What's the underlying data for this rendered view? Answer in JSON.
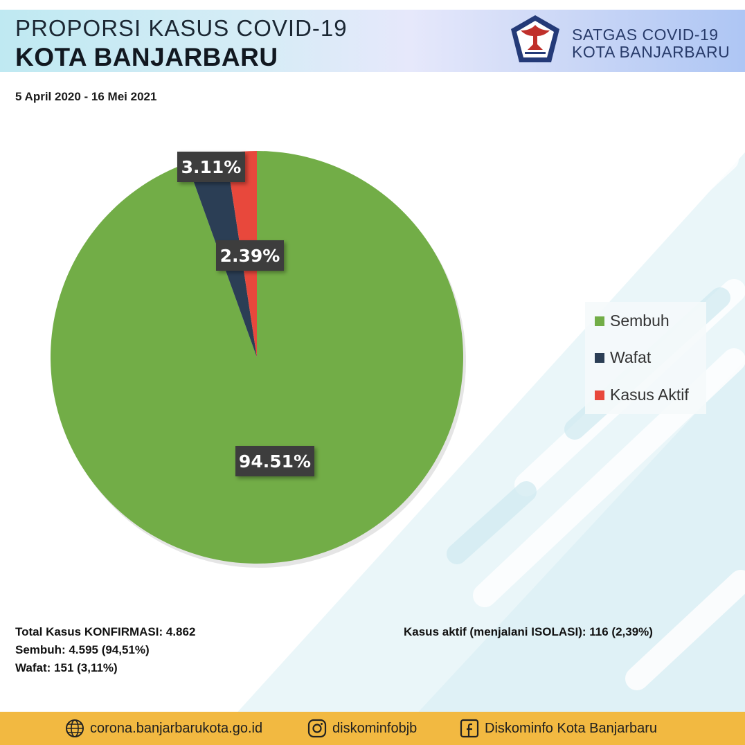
{
  "header": {
    "title_line1": "PROPORSI KASUS COVID-19",
    "title_line2": "KOTA BANJARBARU",
    "date_range": "5 April 2020 - 16 Mei 2021",
    "org_line1": "SATGAS COVID-19",
    "org_line2": "KOTA BANJARBARU",
    "logo_icon": "garuda-emblem-icon"
  },
  "chart_data": {
    "type": "pie",
    "title": "",
    "categories": [
      "Sembuh",
      "Wafat",
      "Kasus Aktif"
    ],
    "values": [
      94.51,
      3.11,
      2.39
    ],
    "labels": [
      "94.51%",
      "3.11%",
      "2.39%"
    ],
    "colors": [
      "#72ad47",
      "#2b3e55",
      "#e8483c"
    ],
    "legend_position": "right"
  },
  "stats": {
    "total": "Total Kasus KONFIRMASI: 4.862",
    "sembuh": "Sembuh: 4.595 (94,51%)",
    "wafat": "Wafat: 151 (3,11%)",
    "aktif": "Kasus aktif (menjalani ISOLASI): 116 (2,39%)"
  },
  "footer": {
    "website": "corona.banjarbarukota.go.id",
    "instagram": "diskominfobjb",
    "facebook": "Diskominfo Kota Banjarbaru",
    "website_icon": "globe-icon",
    "instagram_icon": "instagram-icon",
    "facebook_icon": "facebook-icon"
  }
}
